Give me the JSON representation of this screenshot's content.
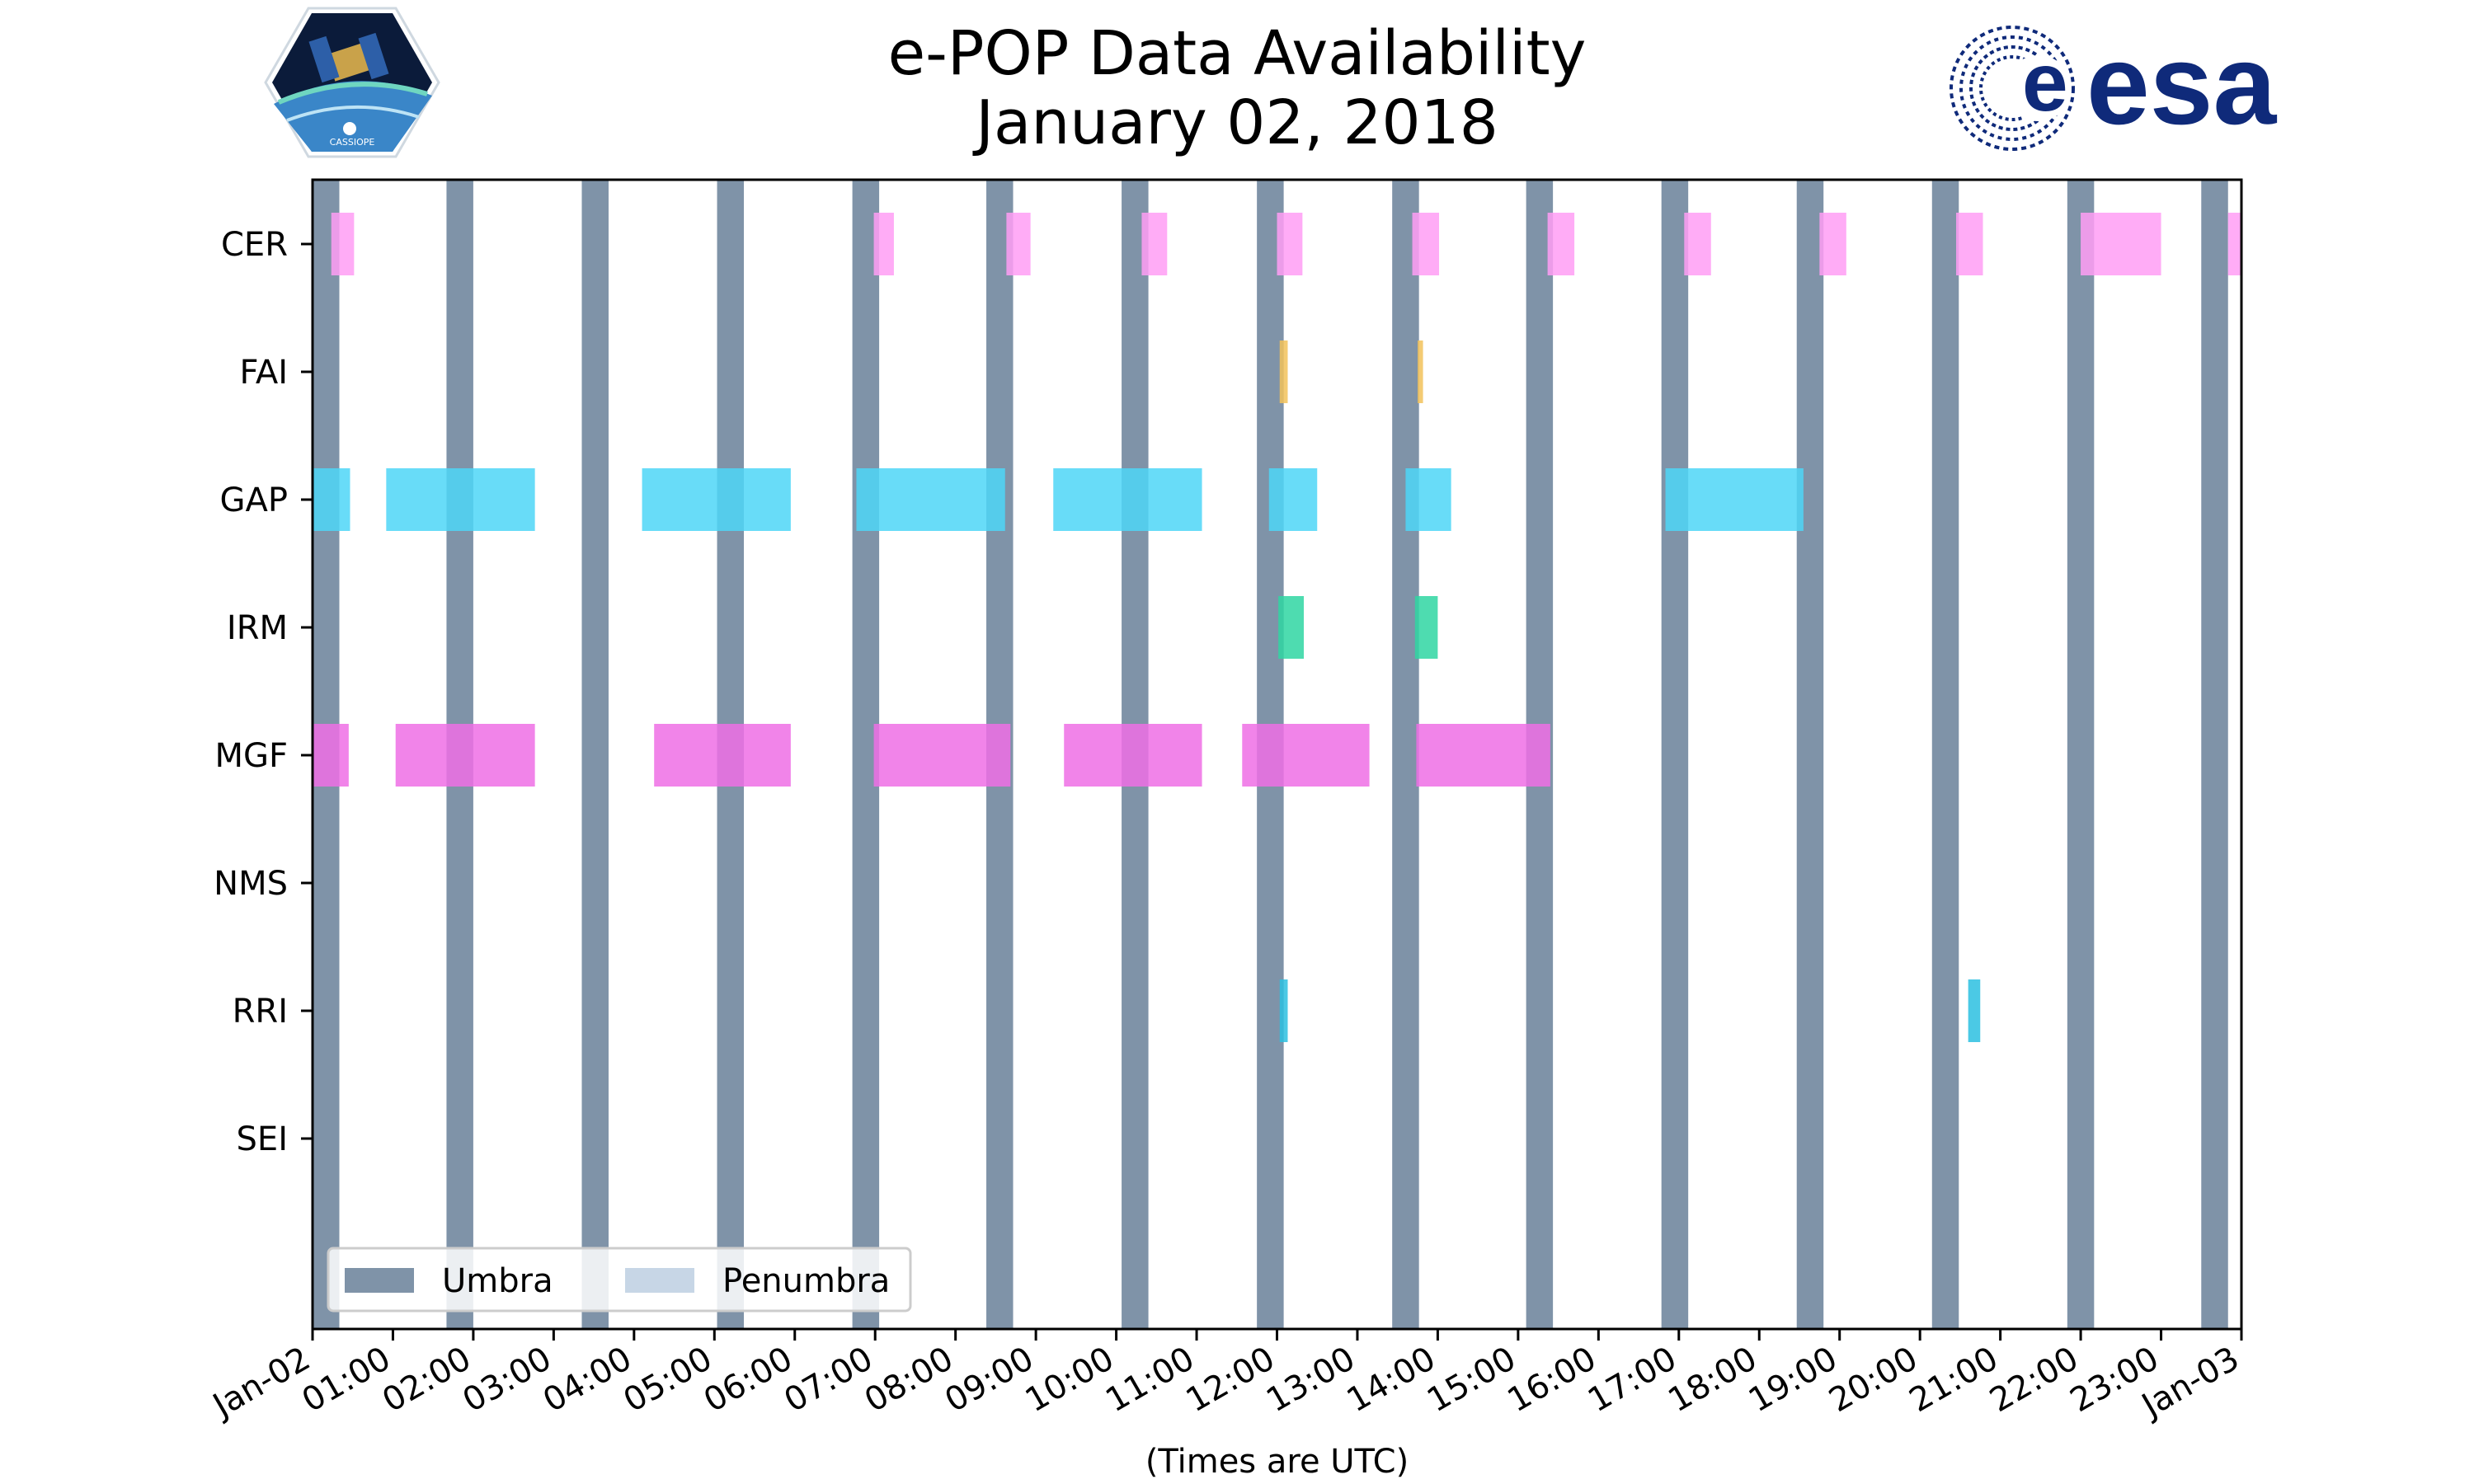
{
  "header": {
    "title_line1": "e-POP Data Availability",
    "title_line2": "January 02, 2018"
  },
  "logos": {
    "left_logo_text": "CASSIOPE",
    "right_logo_text": "esa"
  },
  "chart_data": {
    "type": "gantt",
    "title": "e-POP Data Availability January 02, 2018",
    "xlabel": "(Times are UTC)",
    "ylabel": "",
    "xlim": [
      "2018-01-02 00:00",
      "2018-01-03 00:00"
    ],
    "x_ticks": [
      "Jan-02",
      "01:00",
      "02:00",
      "03:00",
      "04:00",
      "05:00",
      "06:00",
      "07:00",
      "08:00",
      "09:00",
      "10:00",
      "11:00",
      "12:00",
      "13:00",
      "14:00",
      "15:00",
      "16:00",
      "17:00",
      "18:00",
      "19:00",
      "20:00",
      "21:00",
      "22:00",
      "23:00",
      "Jan-03"
    ],
    "categories": [
      "CER",
      "FAI",
      "GAP",
      "IRM",
      "MGF",
      "NMS",
      "RRI",
      "SEI"
    ],
    "grid": false,
    "legend": {
      "placement": "lower-left",
      "entries": [
        {
          "label": "Umbra",
          "color": "#7f93a8"
        },
        {
          "label": "Penumbra",
          "color": "#c7d6e6"
        }
      ]
    },
    "umbra_intervals": [
      [
        "00:00",
        "00:20"
      ],
      [
        "01:40",
        "02:00"
      ],
      [
        "03:21",
        "03:41"
      ],
      [
        "05:02",
        "05:22"
      ],
      [
        "06:43",
        "07:03"
      ],
      [
        "08:23",
        "08:43"
      ],
      [
        "10:04",
        "10:24"
      ],
      [
        "11:45",
        "12:05"
      ],
      [
        "13:26",
        "13:46"
      ],
      [
        "15:06",
        "15:26"
      ],
      [
        "16:47",
        "17:07"
      ],
      [
        "18:28",
        "18:48"
      ],
      [
        "20:09",
        "20:29"
      ],
      [
        "21:50",
        "22:10"
      ],
      [
        "23:30",
        "23:50"
      ]
    ],
    "series": [
      {
        "name": "CER",
        "color": "#ff9ef5",
        "intervals": [
          [
            "00:14",
            "00:31"
          ],
          [
            "06:59",
            "07:14"
          ],
          [
            "08:38",
            "08:56"
          ],
          [
            "10:19",
            "10:38"
          ],
          [
            "12:00",
            "12:19"
          ],
          [
            "13:41",
            "14:01"
          ],
          [
            "15:22",
            "15:42"
          ],
          [
            "17:04",
            "17:24"
          ],
          [
            "18:45",
            "19:05"
          ],
          [
            "20:27",
            "20:47"
          ],
          [
            "22:00",
            "23:00"
          ],
          [
            "23:50",
            "24:00"
          ]
        ]
      },
      {
        "name": "FAI",
        "color": "#f2c25a",
        "intervals": [
          [
            "12:02",
            "12:08"
          ],
          [
            "13:45",
            "13:49"
          ]
        ]
      },
      {
        "name": "GAP",
        "color": "#4ed6f7",
        "intervals": [
          [
            "00:00",
            "00:28"
          ],
          [
            "00:55",
            "02:46"
          ],
          [
            "04:06",
            "05:57"
          ],
          [
            "06:46",
            "08:37"
          ],
          [
            "09:13",
            "11:04"
          ],
          [
            "11:54",
            "12:30"
          ],
          [
            "13:36",
            "14:10"
          ],
          [
            "16:50",
            "18:33"
          ]
        ]
      },
      {
        "name": "IRM",
        "color": "#2fd6a2",
        "intervals": [
          [
            "12:01",
            "12:20"
          ],
          [
            "13:43",
            "14:00"
          ]
        ]
      },
      {
        "name": "MGF",
        "color": "#ef6ee5",
        "intervals": [
          [
            "00:00",
            "00:27"
          ],
          [
            "01:02",
            "02:46"
          ],
          [
            "04:15",
            "05:57"
          ],
          [
            "06:59",
            "08:41"
          ],
          [
            "09:21",
            "11:04"
          ],
          [
            "11:34",
            "13:09"
          ],
          [
            "13:44",
            "15:24"
          ]
        ]
      },
      {
        "name": "NMS",
        "color": "#ef6ee5",
        "intervals": []
      },
      {
        "name": "RRI",
        "color": "#2bbfe0",
        "intervals": [
          [
            "12:02",
            "12:08"
          ],
          [
            "20:36",
            "20:45"
          ]
        ]
      },
      {
        "name": "SEI",
        "color": "#ef6ee5",
        "intervals": []
      }
    ]
  }
}
